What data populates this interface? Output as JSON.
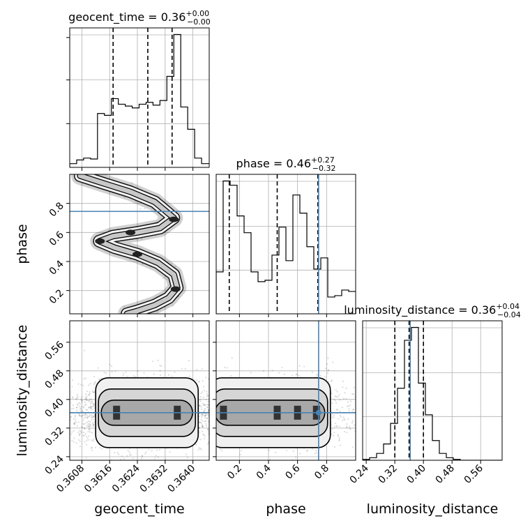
{
  "chart_data": {
    "type": "corner",
    "parameters": [
      "geocent_time",
      "phase",
      "luminosity_distance"
    ],
    "truths": {
      "geocent_time": null,
      "phase": 0.745,
      "luminosity_distance": 0.363
    },
    "axes": {
      "geocent_time": {
        "range": [
          0.36045,
          0.36447
        ],
        "ticks": [
          0.3608,
          0.3616,
          0.3624,
          0.3632,
          0.364
        ],
        "tick_labels": [
          "0.3608",
          "0.3616",
          "0.3624",
          "0.3632",
          "0.3640"
        ]
      },
      "phase": {
        "range": [
          0.04,
          1.0
        ],
        "ticks": [
          0.2,
          0.4,
          0.6,
          0.8
        ],
        "tick_labels": [
          "0.2",
          "0.4",
          "0.6",
          "0.8"
        ]
      },
      "luminosity_distance": {
        "range": [
          0.23,
          0.62
        ],
        "ticks": [
          0.24,
          0.32,
          0.4,
          0.48,
          0.56
        ],
        "tick_labels": [
          "0.24",
          "0.32",
          "0.40",
          "0.48",
          "0.56"
        ]
      }
    },
    "marginals": [
      {
        "parameter": "geocent_time",
        "title": "geocent_time = 0.36$^{+0.00}_{-0.00}$",
        "title_main": "geocent_time = 0.36",
        "title_sup": "+0.00",
        "title_sub": "−0.00",
        "quantiles": [
          0.3617,
          0.3627,
          0.3634
        ],
        "bin_edges": [
          0.36045,
          0.36065,
          0.36085,
          0.36105,
          0.36125,
          0.36145,
          0.36165,
          0.36185,
          0.36205,
          0.36225,
          0.36245,
          0.36265,
          0.36285,
          0.36305,
          0.36325,
          0.36345,
          0.36365,
          0.36385,
          0.36405,
          0.36425,
          0.36447
        ],
        "counts": [
          4,
          8,
          10,
          9,
          58,
          56,
          74,
          68,
          66,
          64,
          68,
          70,
          67,
          72,
          98,
          143,
          65,
          41,
          10,
          4
        ]
      },
      {
        "parameter": "phase",
        "title": "phase = 0.46$^{+0.27}_{-0.32}$",
        "title_main": "phase = 0.46",
        "title_sup": "+0.27",
        "title_sub": "−0.32",
        "quantiles": [
          0.13,
          0.46,
          0.74
        ],
        "bin_edges": [
          0.04,
          0.088,
          0.136,
          0.184,
          0.232,
          0.28,
          0.328,
          0.376,
          0.424,
          0.472,
          0.52,
          0.568,
          0.616,
          0.664,
          0.712,
          0.76,
          0.808,
          0.856,
          0.904,
          0.952,
          1.0
        ],
        "counts": [
          30,
          95,
          92,
          70,
          58,
          30,
          23,
          24,
          42,
          62,
          38,
          85,
          72,
          48,
          32,
          40,
          12,
          13,
          17,
          16
        ]
      },
      {
        "parameter": "luminosity_distance",
        "title": "luminosity_distance = 0.36$^{+0.04}_{-0.04}$",
        "title_main": "luminosity_distance = 0.36",
        "title_sup": "+0.04",
        "title_sub": "−0.04",
        "quantiles": [
          0.32,
          0.36,
          0.4
        ],
        "bin_edges": [
          0.23,
          0.2495,
          0.269,
          0.2885,
          0.308,
          0.3275,
          0.347,
          0.3665,
          0.386,
          0.4055,
          0.425,
          0.4445,
          0.464,
          0.4835,
          0.503,
          0.5225,
          0.542,
          0.5615,
          0.581,
          0.6005,
          0.62
        ],
        "counts": [
          1,
          3,
          8,
          19,
          43,
          84,
          140,
          155,
          90,
          53,
          23,
          8,
          3,
          1,
          0,
          0,
          0,
          0,
          0,
          0
        ]
      }
    ],
    "joint_2d": [
      {
        "x": "geocent_time",
        "y": "phase",
        "ridge": [
          [
            0.36075,
            0.99
          ],
          [
            0.3614,
            0.94
          ],
          [
            0.3622,
            0.88
          ],
          [
            0.3629,
            0.81
          ],
          [
            0.36345,
            0.7
          ],
          [
            0.36305,
            0.63
          ],
          [
            0.3624,
            0.6
          ],
          [
            0.3617,
            0.575
          ],
          [
            0.3613,
            0.54
          ],
          [
            0.36175,
            0.495
          ],
          [
            0.3624,
            0.45
          ],
          [
            0.363,
            0.39
          ],
          [
            0.36345,
            0.31
          ],
          [
            0.36355,
            0.22
          ],
          [
            0.3633,
            0.15
          ],
          [
            0.3629,
            0.1
          ],
          [
            0.3624,
            0.06
          ],
          [
            0.3621,
            0.04
          ]
        ],
        "dense_blobs": [
          [
            0.36345,
            0.69
          ],
          [
            0.36132,
            0.54
          ],
          [
            0.3635,
            0.21
          ],
          [
            0.3624,
            0.45
          ],
          [
            0.3622,
            0.6
          ]
        ]
      },
      {
        "x": "geocent_time",
        "y": "luminosity_distance",
        "modes": [
          [
            0.3618,
            0.363
          ],
          [
            0.36355,
            0.36
          ]
        ],
        "spread": {
          "geocent_time": 0.0008,
          "luminosity_distance": 0.04
        }
      },
      {
        "x": "phase",
        "y": "luminosity_distance",
        "modes": [
          [
            0.09,
            0.363
          ],
          [
            0.46,
            0.363
          ],
          [
            0.6,
            0.363
          ],
          [
            0.73,
            0.363
          ]
        ],
        "spread": {
          "phase": 0.07,
          "luminosity_distance": 0.04
        }
      }
    ],
    "axis_labels": {
      "x": [
        "geocent_time",
        "phase",
        "luminosity_distance"
      ],
      "y": [
        "phase",
        "luminosity_distance"
      ]
    },
    "grid": true,
    "colors": {
      "truth": "#4682b4",
      "hist": "#000000",
      "quantile": "#000000",
      "grid": "#b0b0b0"
    }
  }
}
